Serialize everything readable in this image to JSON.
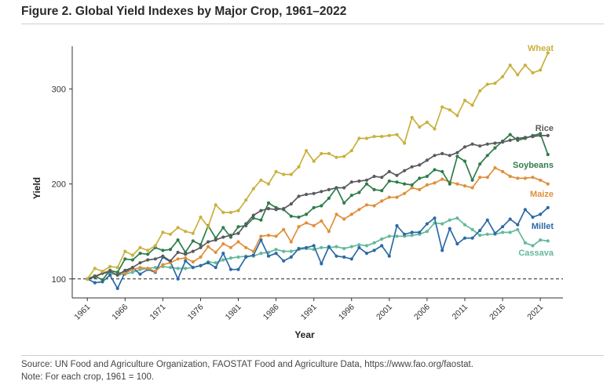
{
  "figure": {
    "title": "Figure 2. Global Yield Indexes by Major Crop, 1961–2022",
    "source": "Source: UN Food and Agriculture Organization, FAOSTAT Food and Agriculture Data, https://www.fao.org/faostat.",
    "note": "Note: For each crop, 1961 = 100."
  },
  "chart_data": {
    "type": "line",
    "title": "Figure 2. Global Yield Indexes by Major Crop, 1961–2022",
    "xlabel": "Year",
    "ylabel": "Yield",
    "xlim": [
      1959,
      2024
    ],
    "ylim": [
      80,
      345
    ],
    "x_ticks": [
      1961,
      1966,
      1971,
      1976,
      1981,
      1986,
      1991,
      1996,
      2001,
      2006,
      2011,
      2016,
      2021
    ],
    "y_ticks": [
      100,
      200,
      300
    ],
    "baseline": 100,
    "grid": false,
    "legend": "series labels placed at right end of each line",
    "x": [
      1961,
      1962,
      1963,
      1964,
      1965,
      1966,
      1967,
      1968,
      1969,
      1970,
      1971,
      1972,
      1973,
      1974,
      1975,
      1976,
      1977,
      1978,
      1979,
      1980,
      1981,
      1982,
      1983,
      1984,
      1985,
      1986,
      1987,
      1988,
      1989,
      1990,
      1991,
      1992,
      1993,
      1994,
      1995,
      1996,
      1997,
      1998,
      1999,
      2000,
      2001,
      2002,
      2003,
      2004,
      2005,
      2006,
      2007,
      2008,
      2009,
      2010,
      2011,
      2012,
      2013,
      2014,
      2015,
      2016,
      2017,
      2018,
      2019,
      2020,
      2021,
      2022
    ],
    "series": [
      {
        "name": "Wheat",
        "color": "#c9b13d",
        "values": [
          100,
          111,
          108,
          113,
          112,
          129,
          125,
          133,
          130,
          135,
          149,
          147,
          154,
          150,
          148,
          165,
          155,
          178,
          170,
          170,
          172,
          183,
          195,
          204,
          200,
          213,
          210,
          210,
          218,
          235,
          224,
          232,
          232,
          228,
          229,
          235,
          248,
          248,
          250,
          250,
          251,
          252,
          243,
          270,
          260,
          265,
          258,
          281,
          278,
          272,
          288,
          283,
          298,
          305,
          306,
          313,
          325,
          315,
          325,
          317,
          320,
          338
        ]
      },
      {
        "name": "Rice",
        "color": "#5a5a5e",
        "values": [
          100,
          102,
          106,
          108,
          104,
          109,
          112,
          117,
          120,
          121,
          124,
          119,
          128,
          126,
          129,
          133,
          139,
          141,
          144,
          146,
          148,
          158,
          167,
          172,
          174,
          173,
          174,
          179,
          187,
          189,
          190,
          192,
          194,
          196,
          196,
          202,
          203,
          204,
          208,
          207,
          213,
          209,
          214,
          218,
          220,
          225,
          230,
          232,
          230,
          233,
          239,
          242,
          240,
          242,
          243,
          244,
          246,
          248,
          249,
          250,
          251,
          251
        ]
      },
      {
        "name": "Soybeans",
        "color": "#2e7d4a",
        "values": [
          100,
          103,
          99,
          109,
          107,
          121,
          120,
          127,
          126,
          133,
          130,
          131,
          141,
          128,
          140,
          136,
          156,
          143,
          154,
          144,
          155,
          156,
          164,
          162,
          180,
          175,
          173,
          166,
          165,
          168,
          175,
          177,
          185,
          196,
          180,
          188,
          191,
          200,
          194,
          193,
          203,
          202,
          200,
          199,
          206,
          208,
          215,
          213,
          200,
          229,
          224,
          204,
          221,
          230,
          238,
          245,
          252,
          246,
          248,
          251,
          253,
          231
        ]
      },
      {
        "name": "Maize",
        "color": "#e08f3a",
        "values": [
          100,
          103,
          106,
          109,
          107,
          106,
          110,
          112,
          111,
          108,
          115,
          117,
          121,
          122,
          118,
          123,
          134,
          128,
          137,
          133,
          139,
          133,
          129,
          145,
          146,
          145,
          152,
          139,
          155,
          159,
          156,
          161,
          150,
          168,
          163,
          168,
          173,
          178,
          177,
          182,
          186,
          186,
          190,
          196,
          194,
          199,
          201,
          205,
          202,
          200,
          198,
          196,
          207,
          207,
          217,
          213,
          208,
          206,
          206,
          207,
          204,
          200
        ]
      },
      {
        "name": "Millet",
        "color": "#2b6aa6",
        "values": [
          100,
          96,
          97,
          104,
          90,
          107,
          112,
          105,
          110,
          107,
          123,
          118,
          100,
          119,
          112,
          114,
          117,
          112,
          127,
          110,
          110,
          123,
          125,
          141,
          124,
          127,
          119,
          123,
          132,
          133,
          135,
          116,
          134,
          124,
          123,
          121,
          133,
          127,
          130,
          135,
          124,
          156,
          147,
          149,
          149,
          158,
          164,
          130,
          153,
          137,
          143,
          143,
          151,
          162,
          148,
          155,
          163,
          157,
          173,
          165,
          168,
          175
        ]
      },
      {
        "name": "Cassava",
        "color": "#63b99a",
        "values": [
          100,
          103,
          106,
          106,
          104,
          105,
          107,
          110,
          111,
          112,
          113,
          112,
          111,
          111,
          112,
          114,
          118,
          117,
          120,
          122,
          123,
          124,
          124,
          127,
          128,
          131,
          129,
          129,
          131,
          132,
          131,
          133,
          133,
          134,
          132,
          134,
          136,
          135,
          138,
          142,
          145,
          145,
          145,
          146,
          147,
          150,
          159,
          158,
          162,
          164,
          157,
          152,
          146,
          147,
          147,
          149,
          149,
          152,
          138,
          135,
          141,
          140
        ]
      }
    ]
  }
}
